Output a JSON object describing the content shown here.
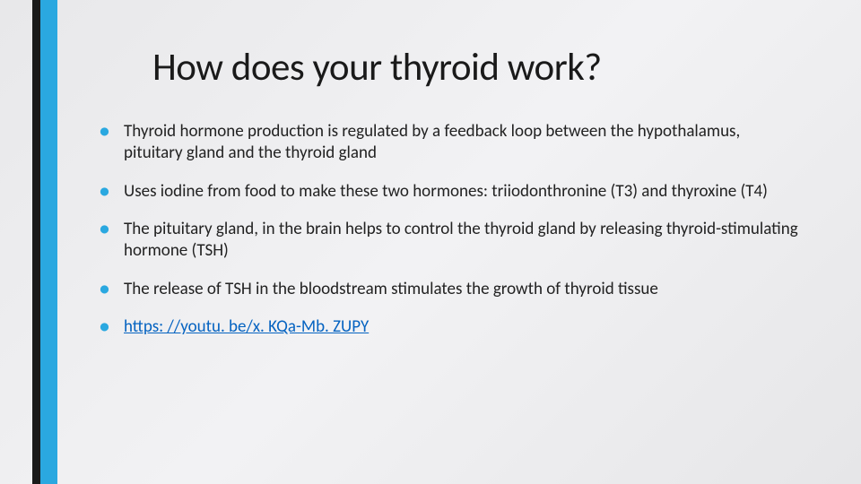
{
  "accent": {
    "black": "#1a1a1a",
    "blue": "#2aa8e0"
  },
  "background_gradient": [
    "#e8e8ea",
    "#f2f2f4",
    "#e6e6e8"
  ],
  "title": "How does your thyroid work?",
  "title_fontsize": 43,
  "bullet_fontsize": 19,
  "bullet_marker_color": "#2aa8e0",
  "text_color": "#222222",
  "link_color": "#0563c1",
  "bullets": [
    {
      "text": "Thyroid hormone production is regulated by a feedback loop between the hypothalamus, pituitary gland and the thyroid gland",
      "is_link": false
    },
    {
      "text": "Uses iodine from food to make these two hormones: triiodonthronine (T3) and thyroxine (T4)",
      "is_link": false
    },
    {
      "text": "The pituitary gland, in the brain helps to control the thyroid gland by releasing thyroid-stimulating hormone (TSH)",
      "is_link": false
    },
    {
      "text": "The release of TSH in the bloodstream stimulates the growth of thyroid tissue",
      "is_link": false
    },
    {
      "text": "https: //youtu. be/x. KQa-Mb. ZUPY",
      "is_link": true
    }
  ]
}
